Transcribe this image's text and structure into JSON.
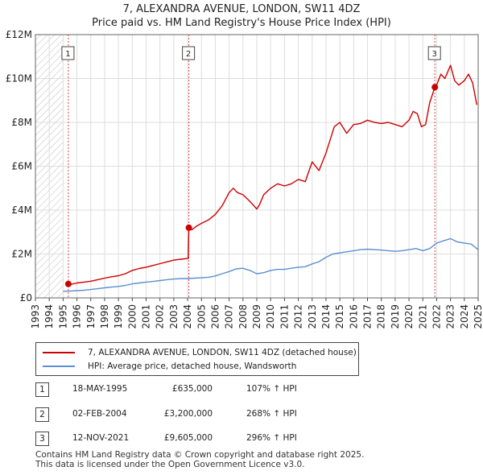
{
  "title_line1": "7, ALEXANDRA AVENUE, LONDON, SW11 4DZ",
  "title_line2": "Price paid vs. HM Land Registry's House Price Index (HPI)",
  "colors": {
    "property": "#cc0000",
    "hpi": "#5b8fd4",
    "marker_line": "#dd4444",
    "grid": "#dddddd"
  },
  "chart_data": {
    "type": "line",
    "xlim": [
      1993.0,
      2025.0
    ],
    "ylim": [
      0,
      12000000
    ],
    "y_ticks": [
      {
        "value": 0,
        "label": "£0"
      },
      {
        "value": 2000000,
        "label": "£2M"
      },
      {
        "value": 4000000,
        "label": "£4M"
      },
      {
        "value": 6000000,
        "label": "£6M"
      },
      {
        "value": 8000000,
        "label": "£8M"
      },
      {
        "value": 10000000,
        "label": "£10M"
      },
      {
        "value": 12000000,
        "label": "£12M"
      }
    ],
    "x_ticks": [
      "1993",
      "1994",
      "1995",
      "1996",
      "1997",
      "1998",
      "1999",
      "2000",
      "2001",
      "2002",
      "2003",
      "2004",
      "2005",
      "2006",
      "2007",
      "2008",
      "2009",
      "2010",
      "2011",
      "2012",
      "2013",
      "2014",
      "2015",
      "2016",
      "2017",
      "2018",
      "2019",
      "2020",
      "2021",
      "2022",
      "2023",
      "2024",
      "2025"
    ],
    "hatched_until": 1995.0,
    "series": [
      {
        "name": "7, ALEXANDRA AVENUE, LONDON, SW11 4DZ (detached house)",
        "x": [
          1995.38,
          1995.6,
          1996.0,
          1996.5,
          1997.0,
          1997.5,
          1998.0,
          1998.5,
          1999.0,
          1999.5,
          2000.0,
          2000.5,
          2001.0,
          2001.5,
          2002.0,
          2002.5,
          2003.0,
          2003.5,
          2004.05,
          2004.09,
          2004.3,
          2004.6,
          2005.0,
          2005.5,
          2006.0,
          2006.5,
          2007.0,
          2007.3,
          2007.6,
          2008.0,
          2008.5,
          2009.0,
          2009.2,
          2009.5,
          2010.0,
          2010.5,
          2011.0,
          2011.5,
          2012.0,
          2012.5,
          2013.0,
          2013.5,
          2014.0,
          2014.3,
          2014.6,
          2015.0,
          2015.5,
          2016.0,
          2016.5,
          2017.0,
          2017.5,
          2018.0,
          2018.5,
          2019.0,
          2019.5,
          2020.0,
          2020.3,
          2020.6,
          2020.9,
          2021.2,
          2021.5,
          2021.87,
          2022.0,
          2022.3,
          2022.6,
          2023.0,
          2023.3,
          2023.6,
          2024.0,
          2024.3,
          2024.6,
          2024.9
        ],
        "y": [
          635000,
          620000,
          680000,
          720000,
          760000,
          830000,
          900000,
          960000,
          1010000,
          1100000,
          1250000,
          1340000,
          1400000,
          1480000,
          1560000,
          1640000,
          1720000,
          1760000,
          1800000,
          3200000,
          3100000,
          3250000,
          3400000,
          3550000,
          3800000,
          4200000,
          4800000,
          5000000,
          4800000,
          4700000,
          4400000,
          4050000,
          4250000,
          4700000,
          5000000,
          5200000,
          5100000,
          5200000,
          5400000,
          5300000,
          6200000,
          5800000,
          6600000,
          7200000,
          7800000,
          8000000,
          7500000,
          7900000,
          7950000,
          8100000,
          8000000,
          7950000,
          8000000,
          7900000,
          7800000,
          8100000,
          8500000,
          8400000,
          7800000,
          7900000,
          8900000,
          9605000,
          9700000,
          10200000,
          10000000,
          10600000,
          9900000,
          9700000,
          9900000,
          10200000,
          9800000,
          8800000
        ],
        "color_key": "property"
      },
      {
        "name": "HPI: Average price, detached house, Wandsworth",
        "x": [
          1995.0,
          1995.5,
          1996.0,
          1996.5,
          1997.0,
          1997.5,
          1998.0,
          1998.5,
          1999.0,
          1999.5,
          2000.0,
          2000.5,
          2001.0,
          2001.5,
          2002.0,
          2002.5,
          2003.0,
          2003.5,
          2004.0,
          2004.5,
          2005.0,
          2005.5,
          2006.0,
          2006.5,
          2007.0,
          2007.5,
          2008.0,
          2008.5,
          2009.0,
          2009.5,
          2010.0,
          2010.5,
          2011.0,
          2011.5,
          2012.0,
          2012.5,
          2013.0,
          2013.5,
          2014.0,
          2014.5,
          2015.0,
          2015.5,
          2016.0,
          2016.5,
          2017.0,
          2017.5,
          2018.0,
          2018.5,
          2019.0,
          2019.5,
          2020.0,
          2020.5,
          2021.0,
          2021.5,
          2022.0,
          2022.5,
          2023.0,
          2023.5,
          2024.0,
          2024.5,
          2025.0
        ],
        "y": [
          300000,
          310000,
          330000,
          350000,
          380000,
          420000,
          460000,
          490000,
          520000,
          570000,
          640000,
          680000,
          720000,
          750000,
          790000,
          830000,
          860000,
          880000,
          880000,
          900000,
          920000,
          940000,
          1000000,
          1100000,
          1200000,
          1320000,
          1350000,
          1250000,
          1100000,
          1150000,
          1250000,
          1300000,
          1300000,
          1350000,
          1400000,
          1420000,
          1550000,
          1650000,
          1850000,
          2000000,
          2050000,
          2100000,
          2150000,
          2200000,
          2220000,
          2200000,
          2180000,
          2150000,
          2120000,
          2150000,
          2200000,
          2250000,
          2150000,
          2250000,
          2500000,
          2600000,
          2700000,
          2550000,
          2500000,
          2450000,
          2200000
        ],
        "color_key": "hpi"
      }
    ],
    "sales": [
      {
        "n": "1",
        "x": 1995.38,
        "y": 635000
      },
      {
        "n": "2",
        "x": 2004.09,
        "y": 3200000
      },
      {
        "n": "3",
        "x": 2021.87,
        "y": 9605000
      }
    ]
  },
  "legend": {
    "property": "7, ALEXANDRA AVENUE, LONDON, SW11 4DZ (detached house)",
    "hpi": "HPI: Average price, detached house, Wandsworth"
  },
  "transactions": [
    {
      "n": "1",
      "date": "18-MAY-1995",
      "price": "£635,000",
      "hpi": "107% ↑ HPI"
    },
    {
      "n": "2",
      "date": "02-FEB-2004",
      "price": "£3,200,000",
      "hpi": "268% ↑ HPI"
    },
    {
      "n": "3",
      "date": "12-NOV-2021",
      "price": "£9,605,000",
      "hpi": "296% ↑ HPI"
    }
  ],
  "footer_line1": "Contains HM Land Registry data © Crown copyright and database right 2025.",
  "footer_line2": "This data is licensed under the Open Government Licence v3.0."
}
